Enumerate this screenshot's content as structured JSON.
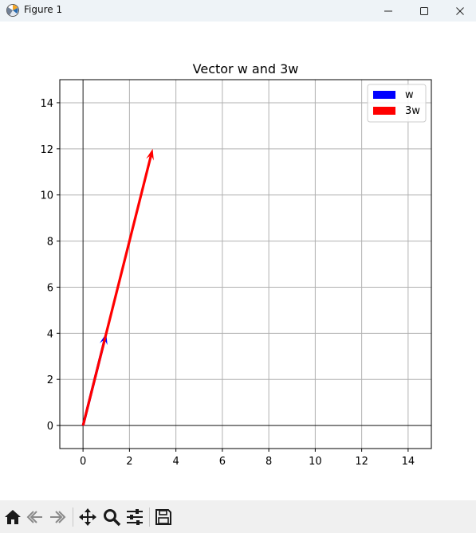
{
  "window": {
    "title": "Figure 1",
    "icons": {
      "app": "matplotlib-icon",
      "minimize": "minimize-icon",
      "maximize": "maximize-icon",
      "close": "close-icon"
    }
  },
  "toolbar": {
    "items": [
      {
        "name": "home-icon"
      },
      {
        "name": "back-icon"
      },
      {
        "name": "forward-icon"
      },
      {
        "name": "pan-icon"
      },
      {
        "name": "zoom-icon"
      },
      {
        "name": "configure-subplots-icon"
      },
      {
        "name": "save-icon"
      }
    ]
  },
  "chart_data": {
    "type": "quiver",
    "title": "Vector w and 3w",
    "xlabel": "",
    "ylabel": "",
    "xlim": [
      -1,
      15
    ],
    "ylim": [
      -1,
      15
    ],
    "xticks": [
      0,
      2,
      4,
      6,
      8,
      10,
      12,
      14
    ],
    "yticks": [
      0,
      2,
      4,
      6,
      8,
      10,
      12,
      14
    ],
    "grid": true,
    "legend_position": "upper-right",
    "series": [
      {
        "name": "w",
        "color": "#0000ff",
        "origin": [
          0,
          0
        ],
        "vector": [
          1,
          4
        ]
      },
      {
        "name": "3w",
        "color": "#ff0000",
        "origin": [
          0,
          0
        ],
        "vector": [
          3,
          12
        ]
      }
    ]
  }
}
